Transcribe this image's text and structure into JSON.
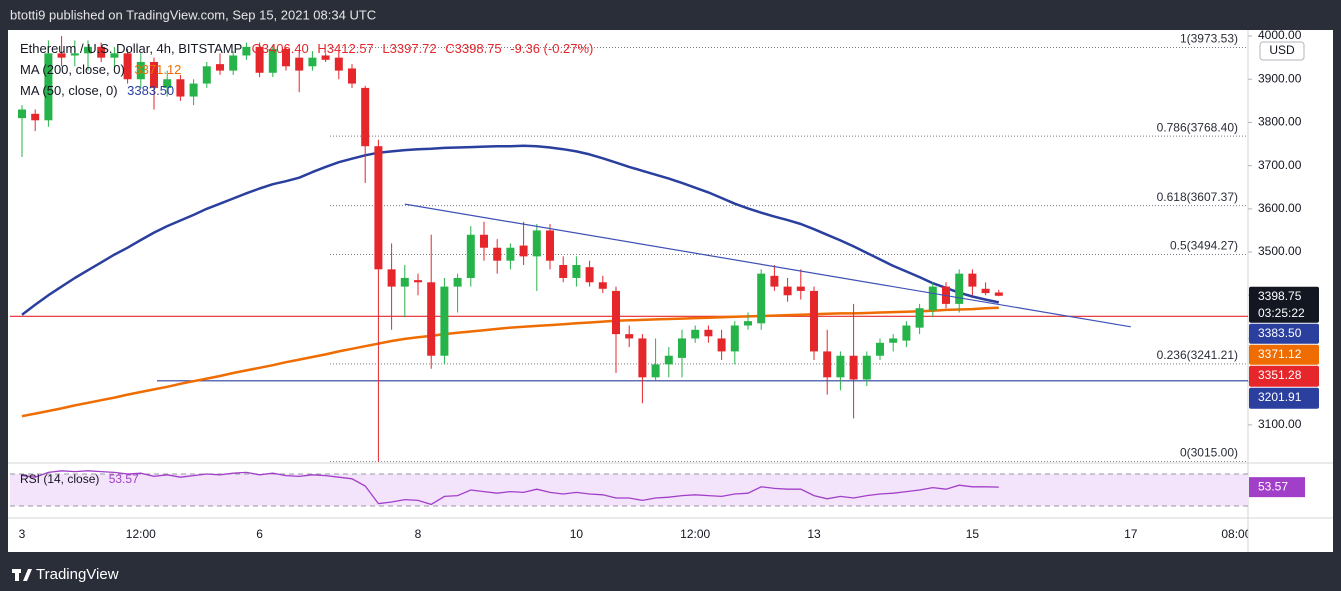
{
  "header": {
    "text": "btotti9 published on TradingView.com, Sep 15, 2021 08:34 UTC"
  },
  "footer": {
    "logo": "TradingView"
  },
  "chart_data": {
    "type": "candlestick",
    "title": "Ethereum / U.S. Dollar, 4h, BITSTAMP",
    "ohlc_labels": [
      "O3406.40",
      "H3412.57",
      "L3397.72",
      "C3398.75"
    ],
    "change_label": "-9.36 (-0.27%)",
    "currency": "USD",
    "countdown": "03:25:22",
    "up_color": "#26b34a",
    "down_color": "#e5262b",
    "categories": [
      "3",
      null,
      null,
      null,
      null,
      null,
      null,
      null,
      null,
      "12:00",
      null,
      null,
      null,
      null,
      null,
      null,
      null,
      null,
      "6",
      null,
      null,
      null,
      null,
      null,
      null,
      null,
      null,
      null,
      null,
      null,
      "8",
      null,
      null,
      null,
      null,
      null,
      null,
      null,
      null,
      null,
      null,
      null,
      "10",
      null,
      null,
      null,
      null,
      null,
      null,
      null,
      null,
      "12:00",
      null,
      null,
      null,
      null,
      null,
      null,
      null,
      null,
      "13",
      null,
      null,
      null,
      null,
      null,
      null,
      null,
      null,
      null,
      null,
      null,
      "15",
      null,
      null,
      null,
      null,
      null,
      null,
      null,
      null,
      null,
      null,
      null,
      "17",
      null,
      null,
      null,
      null,
      null,
      null,
      null,
      "08:00"
    ],
    "open": [
      3810,
      3820,
      3805,
      3960,
      3955,
      3960,
      3975,
      3950,
      3960,
      3900,
      3940,
      3880,
      3900,
      3860,
      3890,
      3935,
      3920,
      3955,
      3975,
      3915,
      3970,
      3950,
      3930,
      3955,
      3950,
      3925,
      3880,
      3745,
      3460,
      3420,
      3435,
      3430,
      3260,
      3420,
      3440,
      3540,
      3510,
      3480,
      3515,
      3490,
      3550,
      3470,
      3440,
      3465,
      3430,
      3410,
      3310,
      3300,
      3210,
      3240,
      3255,
      3300,
      3320,
      3300,
      3270,
      3330,
      3335,
      3445,
      3420,
      3420,
      3410,
      3270,
      3210,
      3260,
      3205,
      3260,
      3290,
      3295,
      3325,
      3365,
      3420,
      3380,
      3450,
      3415,
      3406.4,
      null,
      null,
      null,
      null,
      null,
      null,
      null,
      null,
      null,
      null,
      null,
      null,
      null,
      null,
      null,
      null,
      null,
      null
    ],
    "high": [
      3840,
      3830,
      3990,
      4000,
      3990,
      3990,
      3985,
      3975,
      3970,
      3960,
      3950,
      3920,
      3910,
      3900,
      3940,
      3960,
      3965,
      3985,
      3985,
      3980,
      3975,
      3965,
      3965,
      3960,
      3970,
      3935,
      3885,
      3760,
      3520,
      3470,
      3450,
      3540,
      3440,
      3450,
      3560,
      3570,
      3530,
      3520,
      3570,
      3565,
      3565,
      3490,
      3490,
      3480,
      3445,
      3420,
      3330,
      3310,
      3300,
      3280,
      3320,
      3330,
      3330,
      3320,
      3340,
      3360,
      3460,
      3470,
      3440,
      3460,
      3420,
      3320,
      3270,
      3380,
      3270,
      3300,
      3310,
      3340,
      3380,
      3430,
      3430,
      3460,
      3460,
      3430,
      3412.57,
      null,
      null,
      null,
      null,
      null,
      null,
      null,
      null,
      null,
      null,
      null,
      null,
      null,
      null,
      null,
      null,
      null,
      null
    ],
    "low": [
      3720,
      3780,
      3790,
      3930,
      3930,
      3920,
      3940,
      3925,
      3890,
      3880,
      3830,
      3860,
      3850,
      3840,
      3880,
      3910,
      3910,
      3945,
      3905,
      3905,
      3920,
      3870,
      3920,
      3940,
      3900,
      3880,
      3660,
      3015,
      3320,
      3350,
      3400,
      3230,
      3240,
      3360,
      3420,
      3480,
      3450,
      3460,
      3470,
      3410,
      3460,
      3430,
      3420,
      3420,
      3405,
      3220,
      3280,
      3150,
      3200,
      3210,
      3210,
      3290,
      3290,
      3250,
      3240,
      3320,
      3320,
      3410,
      3385,
      3390,
      3250,
      3170,
      3180,
      3115,
      3190,
      3250,
      3270,
      3280,
      3310,
      3350,
      3370,
      3360,
      3400,
      3400,
      3397.72,
      null,
      null,
      null,
      null,
      null,
      null,
      null,
      null,
      null,
      null,
      null,
      null,
      null,
      null,
      null,
      null,
      null,
      null
    ],
    "close": [
      3830,
      3805,
      3960,
      3950,
      3960,
      3975,
      3950,
      3960,
      3900,
      3940,
      3880,
      3900,
      3860,
      3890,
      3930,
      3920,
      3955,
      3975,
      3915,
      3970,
      3930,
      3920,
      3950,
      3945,
      3920,
      3890,
      3745,
      3460,
      3420,
      3440,
      3430,
      3260,
      3420,
      3440,
      3540,
      3510,
      3480,
      3510,
      3490,
      3550,
      3480,
      3440,
      3470,
      3430,
      3415,
      3310,
      3300,
      3210,
      3240,
      3260,
      3300,
      3320,
      3305,
      3270,
      3330,
      3340,
      3450,
      3420,
      3400,
      3410,
      3270,
      3210,
      3260,
      3205,
      3260,
      3290,
      3300,
      3330,
      3370,
      3420,
      3380,
      3450,
      3420,
      3405,
      3398.75,
      null,
      null,
      null,
      null,
      null,
      null,
      null,
      null,
      null,
      null,
      null,
      null,
      null,
      null,
      null,
      null,
      null,
      null
    ],
    "series": [
      {
        "name": "MA (200, close, 0)",
        "color": "#ef6c00",
        "values": [
          3120,
          3126,
          3132,
          3138,
          3145,
          3151,
          3157,
          3163,
          3170,
          3176,
          3182,
          3188,
          3195,
          3201,
          3207,
          3213,
          3220,
          3226,
          3232,
          3238,
          3245,
          3251,
          3257,
          3263,
          3270,
          3276,
          3282,
          3288,
          3294,
          3299,
          3303,
          3306,
          3310,
          3313,
          3316,
          3319,
          3322,
          3325,
          3327,
          3329,
          3331,
          3333,
          3335,
          3337,
          3339,
          3341,
          3342,
          3343,
          3344,
          3345,
          3346,
          3347,
          3348,
          3349,
          3350,
          3351,
          3352,
          3353,
          3354,
          3355,
          3356,
          3357,
          3358,
          3358,
          3359,
          3360,
          3361,
          3362,
          3363,
          3364,
          3366,
          3367,
          3368,
          3370,
          3371.12,
          null,
          null,
          null,
          null,
          null,
          null,
          null,
          null,
          null,
          null,
          null,
          null,
          null,
          null,
          null,
          null,
          null,
          null
        ]
      },
      {
        "name": "MA (50, close, 0)",
        "color": "#2a3f9e",
        "values": [
          3355,
          3378,
          3400,
          3420,
          3440,
          3458,
          3476,
          3494,
          3510,
          3528,
          3545,
          3560,
          3573,
          3586,
          3600,
          3612,
          3624,
          3636,
          3647,
          3657,
          3664,
          3672,
          3685,
          3697,
          3708,
          3716,
          3724,
          3730,
          3733,
          3736,
          3738,
          3739,
          3741,
          3742,
          3743,
          3744,
          3745,
          3745,
          3746,
          3745,
          3742,
          3738,
          3733,
          3726,
          3717,
          3707,
          3697,
          3688,
          3679,
          3670,
          3660,
          3649,
          3638,
          3625,
          3612,
          3601,
          3591,
          3582,
          3574,
          3565,
          3553,
          3540,
          3527,
          3513,
          3498,
          3483,
          3468,
          3455,
          3442,
          3428,
          3417,
          3406,
          3397,
          3390,
          3383.5,
          null,
          null,
          null,
          null,
          null,
          null,
          null,
          null,
          null,
          null,
          null,
          null,
          null,
          null,
          null,
          null,
          null,
          null
        ],
        "value_labels": {
          "74": "3383.50"
        }
      }
    ],
    "ylim": [
      3014,
      4014
    ],
    "yticks": [
      {
        "value": 3100,
        "label": "3100.00"
      },
      {
        "value": 3200,
        "label": "3200.00"
      },
      {
        "value": 3300,
        "label": "3300.00"
      },
      {
        "value": 3400,
        "label": "3400.00"
      },
      {
        "value": 3500,
        "label": "3500.00"
      },
      {
        "value": 3600,
        "label": "3600.00"
      },
      {
        "value": 3700,
        "label": "3700.00"
      },
      {
        "value": 3800,
        "label": "3800.00"
      },
      {
        "value": 3900,
        "label": "3900.00"
      },
      {
        "value": 4000,
        "label": "4000.00"
      }
    ],
    "grid": false,
    "fib_levels": [
      {
        "value": 3973.53,
        "label": "1(3973.53)"
      },
      {
        "value": 3768.4,
        "label": "0.786(3768.40)"
      },
      {
        "value": 3607.37,
        "label": "0.618(3607.37)"
      },
      {
        "value": 3494.27,
        "label": "0.5(3494.27)"
      },
      {
        "value": 3241.21,
        "label": "0.236(3241.21)"
      },
      {
        "value": 3015,
        "label": "0(3015.00)"
      }
    ],
    "horizontal_lines": [
      {
        "value": 3351.28,
        "color": "#e5262b"
      },
      {
        "value": 3201.91,
        "color": "#2a3f9e"
      }
    ],
    "trendline": {
      "x": [
        29,
        84
      ],
      "y": [
        3611,
        3327
      ],
      "color": "#3f51b5"
    },
    "rsi": {
      "name": "RSI (14, close)",
      "color": "#a23fc9",
      "ylim": [
        17.5,
        80
      ],
      "bands": [
        30,
        70
      ],
      "values": [
        68,
        66,
        72,
        74,
        73,
        74,
        73,
        72,
        70,
        71,
        67,
        69,
        66,
        68,
        70,
        69,
        71,
        72,
        69,
        71,
        68,
        67,
        69,
        68,
        66,
        64,
        55,
        33,
        35,
        38,
        37,
        32,
        42,
        43,
        50,
        48,
        46,
        48,
        47,
        51,
        47,
        45,
        47,
        45,
        44,
        40,
        40,
        37,
        40,
        41,
        43,
        44,
        43,
        42,
        45,
        46,
        54,
        52,
        51,
        51,
        43,
        39,
        42,
        40,
        43,
        45,
        46,
        48,
        50,
        53,
        51,
        56,
        54,
        54,
        53.57,
        null,
        null,
        null,
        null,
        null,
        null,
        null,
        null,
        null,
        null,
        null,
        null,
        null,
        null,
        null,
        null,
        null,
        null
      ]
    }
  }
}
